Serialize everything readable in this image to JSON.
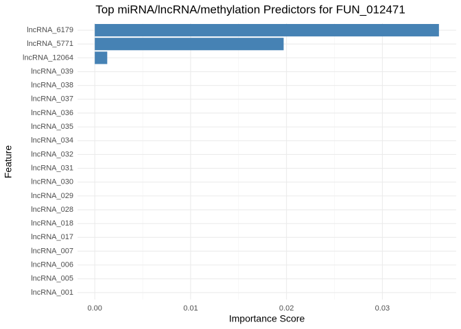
{
  "chart_data": {
    "type": "bar",
    "orientation": "horizontal",
    "title": "Top miRNA/lncRNA/methylation Predictors for FUN_012471",
    "x_label": "Importance Score",
    "y_label": "Feature",
    "categories": [
      "lncRNA_6179",
      "lncRNA_5771",
      "lncRNA_12064",
      "lncRNA_039",
      "lncRNA_038",
      "lncRNA_037",
      "lncRNA_036",
      "lncRNA_035",
      "lncRNA_034",
      "lncRNA_032",
      "lncRNA_031",
      "lncRNA_030",
      "lncRNA_029",
      "lncRNA_028",
      "lncRNA_018",
      "lncRNA_017",
      "lncRNA_007",
      "lncRNA_006",
      "lncRNA_005",
      "lncRNA_001"
    ],
    "values": [
      0.0359,
      0.0197,
      0.0013,
      0,
      0,
      0,
      0,
      0,
      0,
      0,
      0,
      0,
      0,
      0,
      0,
      0,
      0,
      0,
      0,
      0
    ],
    "color": "#4682b4",
    "xlim": [
      -0.0018,
      0.0377
    ],
    "xticks": [
      {
        "value": 0,
        "label": "0.00"
      },
      {
        "value": 0.01,
        "label": "0.01"
      },
      {
        "value": 0.02,
        "label": "0.02"
      },
      {
        "value": 0.03,
        "label": "0.03"
      }
    ],
    "xminorticks": [
      0.005,
      0.015,
      0.025,
      0.035
    ],
    "grid": true
  }
}
